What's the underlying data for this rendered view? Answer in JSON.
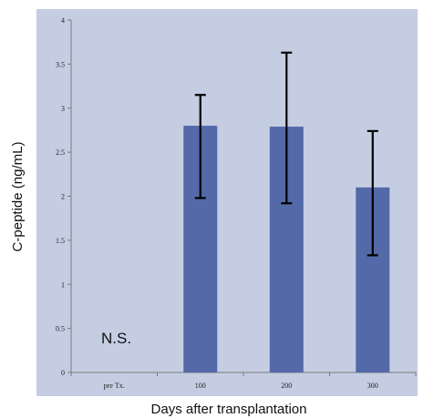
{
  "chart_data": {
    "type": "bar",
    "categories": [
      "pre Tx.",
      "100",
      "200",
      "300"
    ],
    "values": [
      0,
      2.8,
      2.79,
      2.1
    ],
    "error_low": [
      null,
      1.98,
      1.92,
      1.33
    ],
    "error_high": [
      null,
      3.15,
      3.63,
      2.74
    ],
    "xlabel": "Days after transplantation",
    "ylabel": "C-peptide (ng/mL)",
    "ylim": [
      0,
      4
    ],
    "yticks": [
      "0",
      "0.5",
      "1",
      "1.5",
      "2",
      "2.5",
      "3",
      "3.5",
      "4"
    ],
    "annotation": "N.S.",
    "grid": false,
    "colors": {
      "plot_bg": "#c5cde3",
      "bar": "#5369a8",
      "error_bar": "#000000",
      "axis": "#7a7a7a"
    }
  }
}
